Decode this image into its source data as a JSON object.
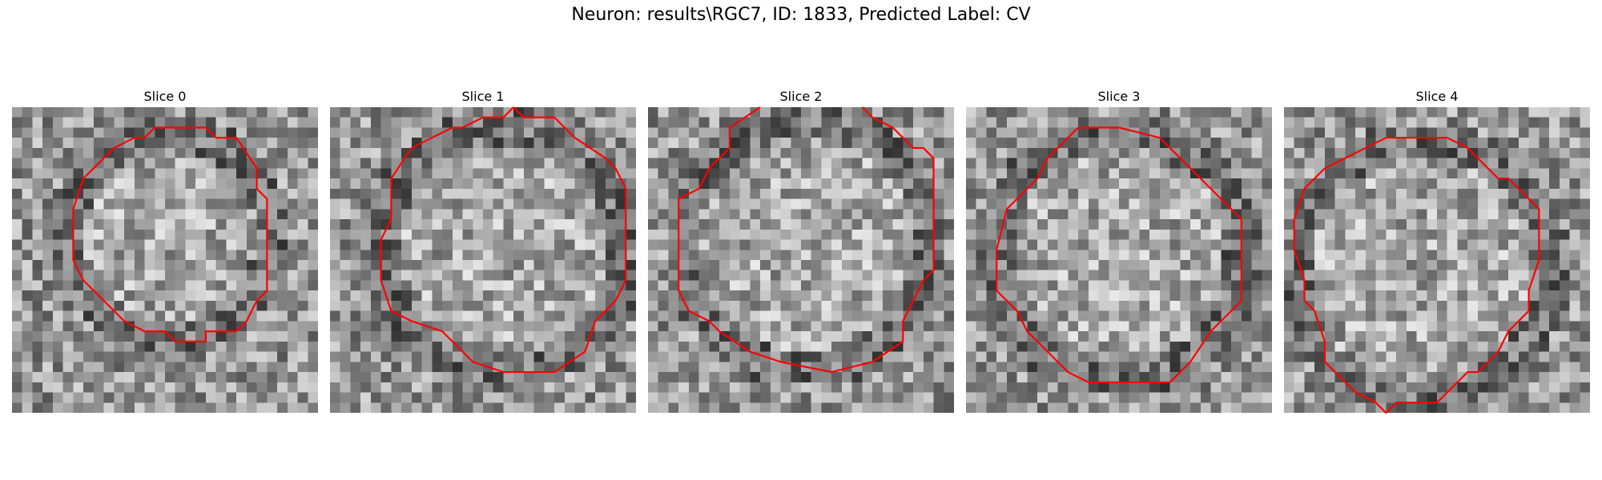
{
  "figure": {
    "title": "Neuron: results\\RGC7, ID: 1833, Predicted Label: CV"
  },
  "colors": {
    "contour": "#ff0000",
    "background": "#ffffff"
  },
  "panels": [
    {
      "title": "Slice 0"
    },
    {
      "title": "Slice 1"
    },
    {
      "title": "Slice 2"
    },
    {
      "title": "Slice 3"
    },
    {
      "title": "Slice 4"
    }
  ]
}
